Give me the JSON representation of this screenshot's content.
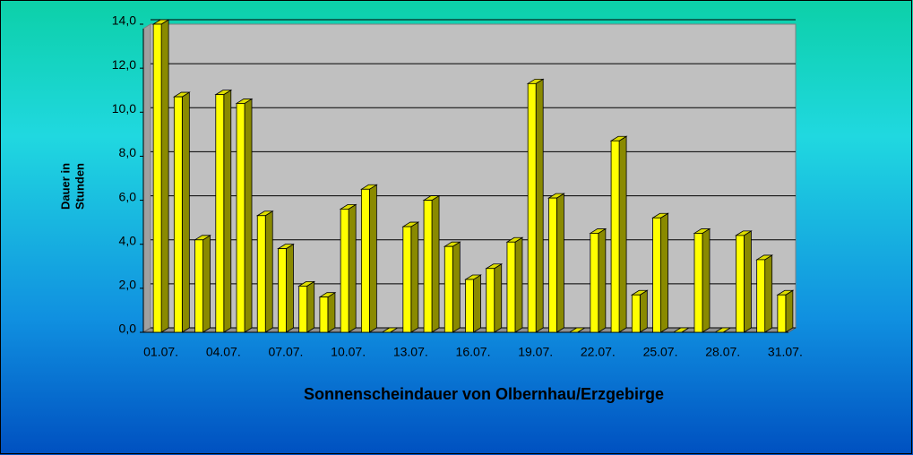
{
  "chart_data": {
    "type": "bar3d",
    "title": "Sonnenscheindauer von Olbernhau/Erzgebirge",
    "y_label": [
      "Dauer in",
      "Stunden"
    ],
    "categories": [
      "01.07.",
      null,
      null,
      "04.07.",
      null,
      null,
      "07.07.",
      null,
      null,
      "10.07.",
      null,
      null,
      "13.07.",
      null,
      null,
      "16.07.",
      null,
      null,
      "19.07.",
      null,
      null,
      "22.07.",
      null,
      null,
      "25.07.",
      null,
      null,
      "28.07.",
      null,
      null,
      "31.07."
    ],
    "values": [
      14.0,
      10.7,
      4.2,
      10.8,
      10.4,
      5.3,
      3.8,
      2.1,
      1.6,
      5.6,
      6.5,
      0,
      4.8,
      6.0,
      3.9,
      2.4,
      2.9,
      4.1,
      11.3,
      6.1,
      0,
      4.5,
      8.7,
      1.7,
      5.2,
      0,
      4.5,
      0,
      4.4,
      3.3,
      1.7
    ],
    "color": "#ffff00",
    "ylim": [
      0,
      14
    ],
    "yticks": [
      {
        "value": 0,
        "label": "0,0"
      },
      {
        "value": 2,
        "label": "2,0"
      },
      {
        "value": 4,
        "label": "4,0"
      },
      {
        "value": 6,
        "label": "6,0"
      },
      {
        "value": 8,
        "label": "8,0"
      },
      {
        "value": 10,
        "label": "10,0"
      },
      {
        "value": 12,
        "label": "12,0"
      },
      {
        "value": 14,
        "label": "14,0"
      }
    ],
    "grid": true
  }
}
